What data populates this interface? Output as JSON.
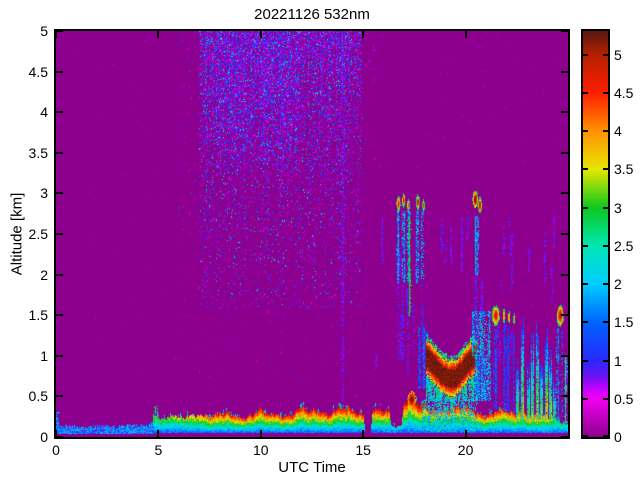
{
  "chart_data": {
    "type": "heatmap",
    "title": "20221126 532nm",
    "xlabel": "UTC Time",
    "ylabel": "Altitude [km]",
    "x_range": [
      0,
      25
    ],
    "y_range": [
      0,
      5
    ],
    "x_ticks": [
      0,
      5,
      10,
      15,
      20
    ],
    "x_tick_labels": [
      "0",
      "5",
      "10",
      "15",
      "20"
    ],
    "y_ticks": [
      0,
      0.5,
      1,
      1.5,
      2,
      2.5,
      3,
      3.5,
      4,
      4.5,
      5
    ],
    "y_tick_labels": [
      "0",
      "0.5",
      "1",
      "1.5",
      "2",
      "2.5",
      "3",
      "3.5",
      "4",
      "4.5",
      "5"
    ],
    "grid": false,
    "colorbar": {
      "position": "right",
      "vmax": 5.31,
      "ticks": [
        0,
        0.5,
        1,
        1.5,
        2,
        2.5,
        3,
        3.5,
        4,
        4.5,
        5
      ],
      "tick_labels": [
        "0",
        "0.5",
        "1",
        "1.5",
        "2",
        "2.5",
        "3",
        "3.5",
        "4",
        "4.5",
        "5"
      ],
      "stops": [
        [
          0,
          "#8d008d"
        ],
        [
          0.5,
          "#f000f0"
        ],
        [
          0.62,
          "#c800ff"
        ],
        [
          0.8,
          "#6a14f0"
        ],
        [
          1,
          "#2828ff"
        ],
        [
          1.5,
          "#0064ff"
        ],
        [
          2,
          "#00ccff"
        ],
        [
          2.5,
          "#00e6b4"
        ],
        [
          3,
          "#0cc81e"
        ],
        [
          3.5,
          "#e6e600"
        ],
        [
          4,
          "#ff9100"
        ],
        [
          4.5,
          "#ff1e00"
        ],
        [
          5,
          "#b42000"
        ],
        [
          5.31,
          "#571710"
        ]
      ]
    },
    "background_value": 0,
    "features": [
      {
        "type": "speckle",
        "t": [
          0,
          25
        ],
        "alt": [
          0,
          5
        ],
        "density": 0.0018,
        "v": [
          0.55,
          1.05
        ]
      },
      {
        "type": "noise_region",
        "t": [
          6.0,
          15.6
        ],
        "alt": [
          0.5,
          5
        ],
        "base": 0.004,
        "top": 0.028,
        "weights": [
          [
            0.5,
            1.0,
            0.8
          ],
          [
            1.0,
            1.7,
            0.2
          ]
        ]
      },
      {
        "type": "noise_region",
        "t": [
          7.0,
          14.9
        ],
        "alt": [
          1.6,
          5
        ],
        "base": 0.05,
        "top": 0.46,
        "hot_t": [
          7.8,
          11.8
        ],
        "hot_alt": 3.3,
        "hot_boost": 0.22,
        "weights": [
          [
            0.5,
            1.0,
            0.7
          ],
          [
            1.0,
            1.8,
            0.21
          ],
          [
            1.9,
            2.4,
            0.09
          ]
        ]
      },
      {
        "type": "vdash",
        "t": 14.0,
        "width": 0.08,
        "alt": [
          0.3,
          5
        ],
        "density": 0.4,
        "v": [
          0.65,
          0.95
        ]
      },
      {
        "type": "sparse_vdashes",
        "t": [
          15.5,
          25
        ],
        "alt": [
          0.35,
          2.7
        ],
        "count": 30,
        "seglen": [
          0.15,
          0.7
        ],
        "density": 0.5,
        "v": [
          0.6,
          1.05
        ]
      },
      {
        "type": "surface_layer",
        "t": [
          0,
          4.75
        ],
        "bottom": 0.04,
        "speckle": 0.2,
        "top_profile": [
          [
            0,
            0.12
          ],
          [
            0.8,
            0.13
          ],
          [
            1.5,
            0.11
          ],
          [
            2.2,
            0.14
          ],
          [
            2.9,
            0.12
          ],
          [
            3.5,
            0.15
          ],
          [
            4.1,
            0.13
          ],
          [
            4.75,
            0.18
          ]
        ]
      },
      {
        "type": "vstreak",
        "t": 0.08,
        "width": 0.08,
        "alt": [
          0.05,
          0.3
        ],
        "v": [
          1.2,
          2.2
        ],
        "density": 0.7
      },
      {
        "type": "vstreak",
        "t": 4.9,
        "width": 0.07,
        "alt": [
          0.1,
          0.38
        ],
        "v": [
          2.0,
          3.2
        ],
        "density": 0.85
      },
      {
        "type": "main_layer",
        "bottom": 0.05,
        "jitter": 0.35,
        "profile": [
          [
            4.75,
            0.3,
            3.3
          ],
          [
            5.0,
            0.21,
            3.0
          ],
          [
            5.4,
            0.23,
            3.2
          ],
          [
            5.8,
            0.26,
            3.4
          ],
          [
            6.2,
            0.21,
            3.3
          ],
          [
            6.6,
            0.25,
            3.7
          ],
          [
            7.0,
            0.28,
            4.0
          ],
          [
            7.5,
            0.24,
            4.4
          ],
          [
            7.9,
            0.28,
            4.6
          ],
          [
            8.3,
            0.31,
            4.7
          ],
          [
            8.7,
            0.27,
            4.5
          ],
          [
            9.2,
            0.25,
            4.4
          ],
          [
            9.6,
            0.29,
            4.7
          ],
          [
            10.0,
            0.32,
            4.8
          ],
          [
            10.4,
            0.28,
            4.6
          ],
          [
            10.8,
            0.24,
            4.4
          ],
          [
            11.3,
            0.28,
            4.6
          ],
          [
            11.7,
            0.31,
            4.7
          ],
          [
            12.1,
            0.34,
            4.8
          ],
          [
            12.5,
            0.29,
            4.6
          ],
          [
            12.9,
            0.32,
            4.7
          ],
          [
            13.3,
            0.28,
            4.5
          ],
          [
            13.8,
            0.31,
            4.7
          ],
          [
            14.2,
            0.37,
            4.9
          ],
          [
            14.6,
            0.32,
            4.7
          ],
          [
            15.0,
            0.29,
            4.6
          ],
          [
            15.08,
            0.03,
            0
          ],
          [
            15.33,
            0.03,
            0
          ],
          [
            15.45,
            0.3,
            4.7
          ],
          [
            15.8,
            0.35,
            4.8
          ],
          [
            16.1,
            0.31,
            4.6
          ],
          [
            16.25,
            0.32,
            4.7
          ],
          [
            16.35,
            0.12,
            2.2
          ],
          [
            16.85,
            0.13,
            2.4
          ],
          [
            16.95,
            0.4,
            4.9
          ],
          [
            17.05,
            0.45,
            5.0
          ],
          [
            17.3,
            0.52,
            5.15
          ],
          [
            17.6,
            0.5,
            5.1
          ],
          [
            17.85,
            0.42,
            4.9
          ],
          [
            18.2,
            0.37,
            4.7
          ],
          [
            18.6,
            0.34,
            4.6
          ],
          [
            19.0,
            0.35,
            4.7
          ],
          [
            19.4,
            0.37,
            4.7
          ],
          [
            19.8,
            0.36,
            4.6
          ],
          [
            20.2,
            0.33,
            4.6
          ],
          [
            20.6,
            0.28,
            4.6
          ],
          [
            21.0,
            0.26,
            4.5
          ],
          [
            21.4,
            0.3,
            4.6
          ],
          [
            21.8,
            0.33,
            4.7
          ],
          [
            22.2,
            0.29,
            4.5
          ],
          [
            22.6,
            0.31,
            4.6
          ],
          [
            23.0,
            0.29,
            4.5
          ],
          [
            23.4,
            0.27,
            4.4
          ],
          [
            23.9,
            0.24,
            4.0
          ],
          [
            24.3,
            0.2,
            3.2
          ],
          [
            24.7,
            0.17,
            2.8
          ],
          [
            25.0,
            0.16,
            2.6
          ]
        ]
      },
      {
        "type": "noisebox",
        "t": [
          17.9,
          20.6
        ],
        "alt": [
          0.07,
          0.45
        ],
        "density": 0.45,
        "v": [
          1.5,
          2.8
        ]
      },
      {
        "type": "blob",
        "t": 17.35,
        "alt": 0.47,
        "rt": 0.2,
        "ra": 0.1,
        "core": 5.25,
        "edge": 3.5
      },
      {
        "type": "vstreak",
        "t": 16.7,
        "width": 0.09,
        "alt": [
          1.9,
          2.78
        ],
        "v": [
          1.2,
          2.4
        ],
        "density": 0.75
      },
      {
        "type": "vstreak",
        "t": 16.7,
        "width": 0.07,
        "alt": [
          0.95,
          1.9
        ],
        "v": [
          0.6,
          1.3
        ],
        "density": 0.4
      },
      {
        "type": "vstreak",
        "t": 16.95,
        "width": 0.09,
        "alt": [
          1.9,
          2.78
        ],
        "v": [
          1.2,
          2.4
        ],
        "density": 0.75
      },
      {
        "type": "vstreak",
        "t": 16.95,
        "width": 0.06,
        "alt": [
          0.95,
          1.9
        ],
        "v": [
          0.6,
          1.3
        ],
        "density": 0.4
      },
      {
        "type": "vstreak",
        "t": 17.2,
        "width": 0.08,
        "alt": [
          1.9,
          2.78
        ],
        "v": [
          1.2,
          2.4
        ],
        "density": 0.7
      },
      {
        "type": "vstreak",
        "t": 17.2,
        "width": 0.06,
        "alt": [
          0.95,
          1.9
        ],
        "v": [
          0.6,
          1.3
        ],
        "density": 0.35
      },
      {
        "type": "vstreak",
        "t": 17.3,
        "width": 0.05,
        "alt": [
          1.5,
          2.7
        ],
        "v": [
          2.5,
          3.2
        ],
        "density": 0.85
      },
      {
        "type": "vstreak",
        "t": 17.65,
        "width": 0.08,
        "alt": [
          1.9,
          2.78
        ],
        "v": [
          1.2,
          2.4
        ],
        "density": 0.7
      },
      {
        "type": "vstreak",
        "t": 17.9,
        "width": 0.07,
        "alt": [
          1.9,
          2.78
        ],
        "v": [
          1.2,
          2.4
        ],
        "density": 0.65
      },
      {
        "type": "vstreak",
        "t": 17.9,
        "width": 0.06,
        "alt": [
          0.95,
          1.9
        ],
        "v": [
          0.6,
          1.3
        ],
        "density": 0.35
      },
      {
        "type": "blob",
        "t": 16.7,
        "alt": 2.88,
        "rt": 0.1,
        "ra": 0.1,
        "core": 4.9,
        "edge": 2.0
      },
      {
        "type": "blob",
        "t": 16.95,
        "alt": 2.92,
        "rt": 0.08,
        "ra": 0.09,
        "core": 5.1,
        "edge": 2.1
      },
      {
        "type": "blob",
        "t": 17.18,
        "alt": 2.86,
        "rt": 0.07,
        "ra": 0.08,
        "core": 4.5,
        "edge": 2.0
      },
      {
        "type": "blob",
        "t": 17.65,
        "alt": 2.9,
        "rt": 0.09,
        "ra": 0.1,
        "core": 5.0,
        "edge": 2.0
      },
      {
        "type": "blob",
        "t": 17.92,
        "alt": 2.86,
        "rt": 0.07,
        "ra": 0.08,
        "core": 4.4,
        "edge": 1.9
      },
      {
        "type": "vstreak",
        "t": 17.75,
        "width": 0.07,
        "alt": [
          0.6,
          1.35
        ],
        "v": [
          0.9,
          1.8
        ],
        "density": 0.8
      },
      {
        "type": "vstreak",
        "t": 17.95,
        "width": 0.07,
        "alt": [
          0.6,
          1.35
        ],
        "v": [
          0.9,
          1.8
        ],
        "density": 0.8
      },
      {
        "type": "vstreak",
        "t": 18.12,
        "width": 0.06,
        "alt": [
          0.6,
          1.3
        ],
        "v": [
          0.9,
          1.8
        ],
        "density": 0.7
      },
      {
        "type": "band",
        "path": [
          [
            18.1,
            0.98
          ],
          [
            18.4,
            0.9
          ],
          [
            18.8,
            0.78
          ],
          [
            19.2,
            0.72
          ],
          [
            19.5,
            0.73
          ],
          [
            19.8,
            0.82
          ],
          [
            20.1,
            0.92
          ],
          [
            20.45,
            1.0
          ],
          [
            20.6,
            0.99
          ]
        ],
        "half": 0.1,
        "fringe": 0.13,
        "core": 5.2,
        "edge": 2.2,
        "fill_to": 0.45,
        "fill_v": [
          1.6,
          3.0
        ],
        "fill_density": 0.7
      },
      {
        "type": "noisebox",
        "t": [
          20.35,
          21.2
        ],
        "alt": [
          1.0,
          1.55
        ],
        "density": 0.55,
        "v": [
          1.3,
          2.5
        ]
      },
      {
        "type": "noisebox",
        "t": [
          20.5,
          21.2
        ],
        "alt": [
          0.45,
          1.0
        ],
        "density": 0.5,
        "v": [
          1.2,
          2.3
        ]
      },
      {
        "type": "blob",
        "t": 20.45,
        "alt": 2.93,
        "rt": 0.14,
        "ra": 0.12,
        "core": 5.3,
        "edge": 2.4
      },
      {
        "type": "blob",
        "t": 20.68,
        "alt": 2.86,
        "rt": 0.1,
        "ra": 0.1,
        "core": 5.15,
        "edge": 2.2
      },
      {
        "type": "vstreak",
        "t": 20.55,
        "width": 0.14,
        "alt": [
          2.0,
          2.72
        ],
        "v": [
          1.3,
          2.4
        ],
        "density": 0.8
      },
      {
        "type": "vstreak",
        "t": 20.55,
        "width": 0.1,
        "alt": [
          1.2,
          2.0
        ],
        "v": [
          0.6,
          1.2
        ],
        "density": 0.45
      },
      {
        "type": "blob",
        "t": 21.45,
        "alt": 1.5,
        "rt": 0.2,
        "ra": 0.13,
        "core": 5.05,
        "edge": 2.2
      },
      {
        "type": "vstreak",
        "t": 21.45,
        "width": 0.14,
        "alt": [
          0.35,
          1.33
        ],
        "v": [
          0.8,
          1.7
        ],
        "density": 0.55
      },
      {
        "type": "blob",
        "t": 21.85,
        "alt": 1.5,
        "rt": 0.07,
        "ra": 0.09,
        "core": 4.4,
        "edge": 2.0
      },
      {
        "type": "blob",
        "t": 22.1,
        "alt": 1.48,
        "rt": 0.06,
        "ra": 0.08,
        "core": 4.3,
        "edge": 2.0
      },
      {
        "type": "blob",
        "t": 22.35,
        "alt": 1.46,
        "rt": 0.05,
        "ra": 0.07,
        "core": 4.1,
        "edge": 1.9
      },
      {
        "type": "vstreak",
        "t": 21.9,
        "width": 0.06,
        "alt": [
          0.3,
          1.38
        ],
        "v": [
          0.8,
          1.5
        ],
        "density": 0.7
      },
      {
        "type": "vstreak",
        "t": 22.1,
        "width": 0.06,
        "alt": [
          0.3,
          1.36
        ],
        "v": [
          0.8,
          1.5
        ],
        "density": 0.65
      },
      {
        "type": "vstreak",
        "t": 22.35,
        "width": 0.05,
        "alt": [
          0.3,
          1.3
        ],
        "v": [
          0.8,
          1.5
        ],
        "density": 0.6
      },
      {
        "type": "plume",
        "t": 22.55,
        "width": 0.1,
        "top": 0.9
      },
      {
        "type": "plume",
        "t": 22.8,
        "width": 0.09,
        "top": 1.25
      },
      {
        "type": "plume",
        "t": 23.05,
        "width": 0.08,
        "top": 0.8
      },
      {
        "type": "plume",
        "t": 23.25,
        "width": 0.1,
        "top": 1.15
      },
      {
        "type": "plume",
        "t": 23.5,
        "width": 0.09,
        "top": 1.35
      },
      {
        "type": "plume",
        "t": 23.7,
        "width": 0.08,
        "top": 0.85
      },
      {
        "type": "plume",
        "t": 23.95,
        "width": 0.09,
        "top": 1.2
      },
      {
        "type": "plume",
        "t": 24.15,
        "width": 0.08,
        "top": 0.95
      },
      {
        "type": "plume",
        "t": 24.35,
        "width": 0.07,
        "top": 0.7
      },
      {
        "type": "blob",
        "t": 24.6,
        "alt": 1.5,
        "rt": 0.18,
        "ra": 0.14,
        "core": 5.1,
        "edge": 2.3
      },
      {
        "type": "vstreak",
        "t": 24.5,
        "width": 0.08,
        "alt": [
          0.2,
          1.34
        ],
        "v": [
          1.0,
          2.2
        ],
        "density": 0.7
      },
      {
        "type": "vstreak",
        "t": 24.72,
        "width": 0.07,
        "alt": [
          0.25,
          1.32
        ],
        "v": [
          1.0,
          2.0
        ],
        "density": 0.65
      },
      {
        "type": "vstreak",
        "t": 24.9,
        "width": 0.07,
        "alt": [
          0.15,
          1.0
        ],
        "v": [
          1.8,
          3.0
        ],
        "density": 0.8
      }
    ]
  }
}
